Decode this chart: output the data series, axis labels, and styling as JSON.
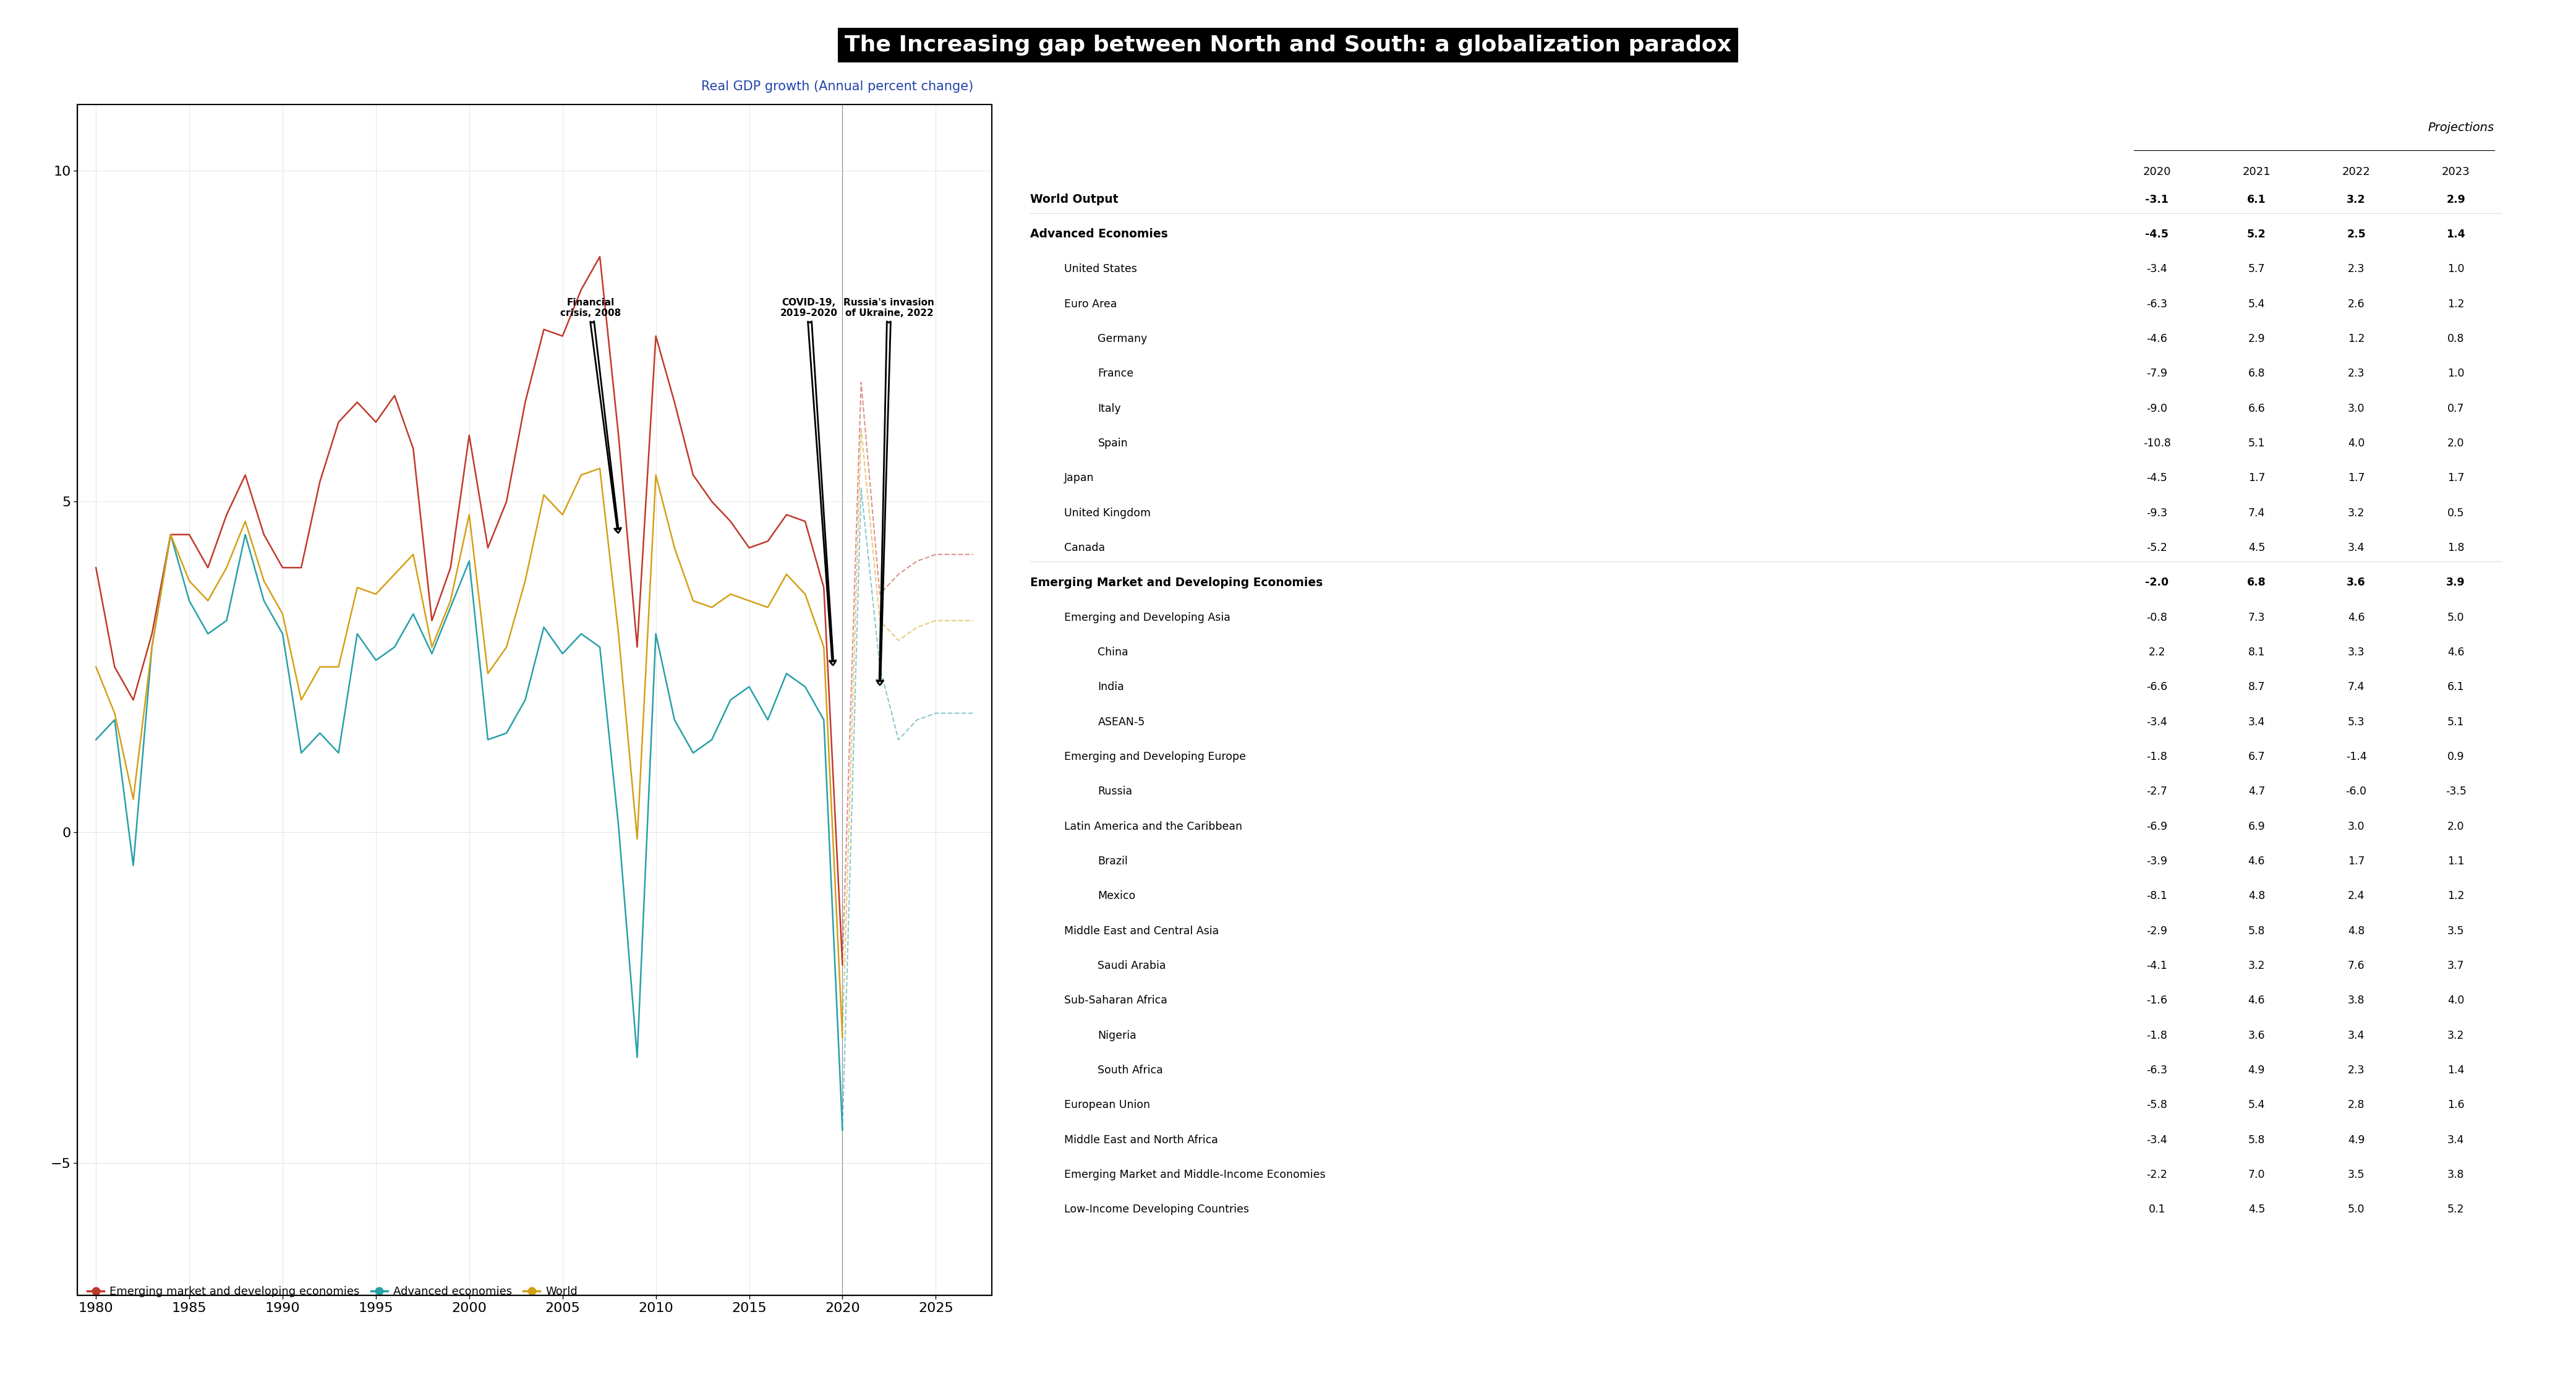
{
  "title": "The Increasing gap between North and South: a globalization paradox",
  "chart_title": "Real GDP growth (Annual percent change)",
  "years": [
    1980,
    1981,
    1982,
    1983,
    1984,
    1985,
    1986,
    1987,
    1988,
    1989,
    1990,
    1991,
    1992,
    1993,
    1994,
    1995,
    1996,
    1997,
    1998,
    1999,
    2000,
    2001,
    2002,
    2003,
    2004,
    2005,
    2006,
    2007,
    2008,
    2009,
    2010,
    2011,
    2012,
    2013,
    2014,
    2015,
    2016,
    2017,
    2018,
    2019,
    2020,
    2021,
    2022,
    2023,
    2024,
    2025,
    2026,
    2027
  ],
  "emerging": [
    4.0,
    2.5,
    2.0,
    3.0,
    4.5,
    4.5,
    4.0,
    4.8,
    5.4,
    4.5,
    4.0,
    4.0,
    5.3,
    6.2,
    6.5,
    6.2,
    6.6,
    5.8,
    3.2,
    4.0,
    6.0,
    4.3,
    5.0,
    6.5,
    7.6,
    7.5,
    8.2,
    8.7,
    6.0,
    2.8,
    7.5,
    6.5,
    5.4,
    5.0,
    4.7,
    4.3,
    4.4,
    4.8,
    4.7,
    3.7,
    -2.0,
    6.8,
    3.6,
    3.9,
    4.1,
    4.2,
    4.2,
    4.2
  ],
  "advanced": [
    1.4,
    1.7,
    -0.5,
    2.8,
    4.5,
    3.5,
    3.0,
    3.2,
    4.5,
    3.5,
    3.0,
    1.2,
    1.5,
    1.2,
    3.0,
    2.6,
    2.8,
    3.3,
    2.7,
    3.4,
    4.1,
    1.4,
    1.5,
    2.0,
    3.1,
    2.7,
    3.0,
    2.8,
    0.1,
    -3.4,
    3.0,
    1.7,
    1.2,
    1.4,
    2.0,
    2.2,
    1.7,
    2.4,
    2.2,
    1.7,
    -4.5,
    5.2,
    2.5,
    1.4,
    1.7,
    1.8,
    1.8,
    1.8
  ],
  "world": [
    2.5,
    1.8,
    0.5,
    2.8,
    4.5,
    3.8,
    3.5,
    4.0,
    4.7,
    3.8,
    3.3,
    2.0,
    2.5,
    2.5,
    3.7,
    3.6,
    3.9,
    4.2,
    2.8,
    3.5,
    4.8,
    2.4,
    2.8,
    3.8,
    5.1,
    4.8,
    5.4,
    5.5,
    3.0,
    -0.1,
    5.4,
    4.3,
    3.5,
    3.4,
    3.6,
    3.5,
    3.4,
    3.9,
    3.6,
    2.8,
    -3.1,
    6.1,
    3.2,
    2.9,
    3.1,
    3.2,
    3.2,
    3.2
  ],
  "emerging_color": "#c0392b",
  "advanced_color": "#27a0a8",
  "world_color": "#d4a017",
  "ylim": [
    -7,
    11
  ],
  "yticks": [
    -5,
    0,
    5,
    10
  ],
  "xlim": [
    1979,
    2028
  ],
  "xticks": [
    1980,
    1985,
    1990,
    1995,
    2000,
    2005,
    2010,
    2015,
    2020,
    2025
  ],
  "table_rows": [
    {
      "label": "World Output",
      "bold": true,
      "indent": 0,
      "vals": [
        "-3.1",
        "6.1",
        "3.2",
        "2.9"
      ]
    },
    {
      "label": "Advanced Economies",
      "bold": true,
      "indent": 0,
      "vals": [
        "-4.5",
        "5.2",
        "2.5",
        "1.4"
      ]
    },
    {
      "label": "United States",
      "bold": false,
      "indent": 1,
      "vals": [
        "-3.4",
        "5.7",
        "2.3",
        "1.0"
      ]
    },
    {
      "label": "Euro Area",
      "bold": false,
      "indent": 1,
      "vals": [
        "-6.3",
        "5.4",
        "2.6",
        "1.2"
      ]
    },
    {
      "label": "Germany",
      "bold": false,
      "indent": 2,
      "vals": [
        "-4.6",
        "2.9",
        "1.2",
        "0.8"
      ]
    },
    {
      "label": "France",
      "bold": false,
      "indent": 2,
      "vals": [
        "-7.9",
        "6.8",
        "2.3",
        "1.0"
      ]
    },
    {
      "label": "Italy",
      "bold": false,
      "indent": 2,
      "vals": [
        "-9.0",
        "6.6",
        "3.0",
        "0.7"
      ]
    },
    {
      "label": "Spain",
      "bold": false,
      "indent": 2,
      "vals": [
        "-10.8",
        "5.1",
        "4.0",
        "2.0"
      ]
    },
    {
      "label": "Japan",
      "bold": false,
      "indent": 1,
      "vals": [
        "-4.5",
        "1.7",
        "1.7",
        "1.7"
      ]
    },
    {
      "label": "United Kingdom",
      "bold": false,
      "indent": 1,
      "vals": [
        "-9.3",
        "7.4",
        "3.2",
        "0.5"
      ]
    },
    {
      "label": "Canada",
      "bold": false,
      "indent": 1,
      "vals": [
        "-5.2",
        "4.5",
        "3.4",
        "1.8"
      ]
    },
    {
      "label": "Emerging Market and Developing Economies",
      "bold": true,
      "indent": 0,
      "vals": [
        "-2.0",
        "6.8",
        "3.6",
        "3.9"
      ]
    },
    {
      "label": "Emerging and Developing Asia",
      "bold": false,
      "indent": 1,
      "vals": [
        "-0.8",
        "7.3",
        "4.6",
        "5.0"
      ]
    },
    {
      "label": "China",
      "bold": false,
      "indent": 2,
      "vals": [
        "2.2",
        "8.1",
        "3.3",
        "4.6"
      ]
    },
    {
      "label": "India",
      "bold": false,
      "indent": 2,
      "vals": [
        "-6.6",
        "8.7",
        "7.4",
        "6.1"
      ]
    },
    {
      "label": "ASEAN-5",
      "bold": false,
      "indent": 2,
      "vals": [
        "-3.4",
        "3.4",
        "5.3",
        "5.1"
      ]
    },
    {
      "label": "Emerging and Developing Europe",
      "bold": false,
      "indent": 1,
      "vals": [
        "-1.8",
        "6.7",
        "-1.4",
        "0.9"
      ]
    },
    {
      "label": "Russia",
      "bold": false,
      "indent": 2,
      "vals": [
        "-2.7",
        "4.7",
        "-6.0",
        "-3.5"
      ]
    },
    {
      "label": "Latin America and the Caribbean",
      "bold": false,
      "indent": 1,
      "vals": [
        "-6.9",
        "6.9",
        "3.0",
        "2.0"
      ]
    },
    {
      "label": "Brazil",
      "bold": false,
      "indent": 2,
      "vals": [
        "-3.9",
        "4.6",
        "1.7",
        "1.1"
      ]
    },
    {
      "label": "Mexico",
      "bold": false,
      "indent": 2,
      "vals": [
        "-8.1",
        "4.8",
        "2.4",
        "1.2"
      ]
    },
    {
      "label": "Middle East and Central Asia",
      "bold": false,
      "indent": 1,
      "vals": [
        "-2.9",
        "5.8",
        "4.8",
        "3.5"
      ]
    },
    {
      "label": "Saudi Arabia",
      "bold": false,
      "indent": 2,
      "vals": [
        "-4.1",
        "3.2",
        "7.6",
        "3.7"
      ]
    },
    {
      "label": "Sub-Saharan Africa",
      "bold": false,
      "indent": 1,
      "vals": [
        "-1.6",
        "4.6",
        "3.8",
        "4.0"
      ]
    },
    {
      "label": "Nigeria",
      "bold": false,
      "indent": 2,
      "vals": [
        "-1.8",
        "3.6",
        "3.4",
        "3.2"
      ]
    },
    {
      "label": "South Africa",
      "bold": false,
      "indent": 2,
      "vals": [
        "-6.3",
        "4.9",
        "2.3",
        "1.4"
      ]
    },
    {
      "label": "European Union",
      "bold": false,
      "indent": 1,
      "vals": [
        "-5.8",
        "5.4",
        "2.8",
        "1.6"
      ]
    },
    {
      "label": "Middle East and North Africa",
      "bold": false,
      "indent": 1,
      "vals": [
        "-3.4",
        "5.8",
        "4.9",
        "3.4"
      ]
    },
    {
      "label": "Emerging Market and Middle-Income Economies",
      "bold": false,
      "indent": 1,
      "vals": [
        "-2.2",
        "7.0",
        "3.5",
        "3.8"
      ]
    },
    {
      "label": "Low-Income Developing Countries",
      "bold": false,
      "indent": 1,
      "vals": [
        "0.1",
        "4.5",
        "5.0",
        "5.2"
      ]
    }
  ],
  "proj_cols": [
    "2020",
    "2021",
    "2022",
    "2023"
  ],
  "proj_label": "Projections"
}
